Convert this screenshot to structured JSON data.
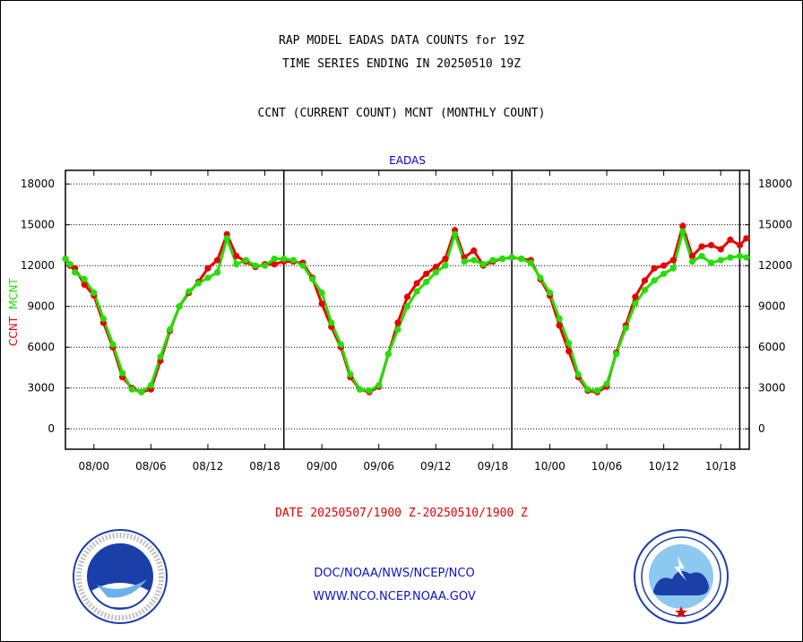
{
  "header": {
    "title_line1": "RAP MODEL EADAS DATA COUNTS for 19Z",
    "title_line2": "TIME SERIES ENDING IN 20250510 19Z",
    "title_line3": "CCNT (CURRENT COUNT) MCNT (MONTHLY COUNT)"
  },
  "footer": {
    "date_range": "DATE 20250507/1900 Z-20250510/1900 Z",
    "link1": "DOC/NOAA/NWS/NCEP/NCO",
    "link2": "WWW.NCO.NCEP.NOAA.GOV"
  },
  "colors": {
    "ccnt": "#e80000",
    "mcnt": "#22e000",
    "axis": "#000000",
    "title": "#0000c8"
  },
  "chart_data": {
    "type": "line",
    "title": "EADAS",
    "ylabel_parts": [
      "CCNT",
      "MCNT"
    ],
    "ylim": [
      -1500,
      19000
    ],
    "yticks": [
      0,
      3000,
      6000,
      9000,
      12000,
      15000,
      18000
    ],
    "xlim": [
      0,
      72
    ],
    "xticks": [
      {
        "x": 3,
        "label": "08/00"
      },
      {
        "x": 9,
        "label": "08/06"
      },
      {
        "x": 15,
        "label": "08/12"
      },
      {
        "x": 21,
        "label": "08/18"
      },
      {
        "x": 27,
        "label": "09/00"
      },
      {
        "x": 33,
        "label": "09/06"
      },
      {
        "x": 39,
        "label": "09/12"
      },
      {
        "x": 45,
        "label": "09/18"
      },
      {
        "x": 51,
        "label": "10/00"
      },
      {
        "x": 57,
        "label": "10/06"
      },
      {
        "x": 63,
        "label": "10/12"
      },
      {
        "x": 69,
        "label": "10/18"
      }
    ],
    "vlines": [
      23,
      47,
      71
    ],
    "grid": "horizontal dotted",
    "series": [
      {
        "name": "CCNT",
        "x": [
          0,
          0.5,
          1,
          2,
          3,
          4,
          5,
          6,
          7,
          8,
          9,
          10,
          11,
          12,
          13,
          14,
          15,
          16,
          17,
          18,
          19,
          20,
          21,
          22,
          23,
          24,
          25,
          26,
          27,
          28,
          29,
          30,
          31,
          32,
          33,
          34,
          35,
          36,
          37,
          38,
          39,
          40,
          41,
          42,
          43,
          44,
          45,
          46,
          47,
          48,
          49,
          50,
          51,
          52,
          53,
          54,
          55,
          56,
          57,
          58,
          59,
          60,
          61,
          62,
          63,
          64,
          65,
          66,
          67,
          68,
          69,
          70,
          71,
          71.7
        ],
        "values": [
          12500,
          12000,
          11800,
          10600,
          9800,
          7800,
          6000,
          3800,
          3000,
          2700,
          2900,
          5000,
          7200,
          9000,
          10000,
          10800,
          11800,
          12400,
          14300,
          12700,
          12300,
          11900,
          12100,
          12100,
          12300,
          12300,
          12200,
          11100,
          9200,
          7500,
          6000,
          3800,
          2900,
          2700,
          3100,
          5500,
          7800,
          9700,
          10700,
          11400,
          11900,
          12500,
          14600,
          12600,
          13100,
          12000,
          12300,
          12500,
          12600,
          12500,
          12400,
          11000,
          9800,
          7600,
          5700,
          3800,
          2800,
          2700,
          3100,
          5600,
          7600,
          9700,
          10900,
          11800,
          12000,
          12400,
          14900,
          12700,
          13400,
          13500,
          13200,
          13900,
          13500,
          14000
        ]
      },
      {
        "name": "MCNT",
        "x": [
          0,
          0.5,
          1,
          2,
          3,
          4,
          5,
          6,
          7,
          8,
          9,
          10,
          11,
          12,
          13,
          14,
          15,
          16,
          17,
          18,
          19,
          20,
          21,
          22,
          23,
          24,
          25,
          26,
          27,
          28,
          29,
          30,
          31,
          32,
          33,
          34,
          35,
          36,
          37,
          38,
          39,
          40,
          41,
          42,
          43,
          44,
          45,
          46,
          47,
          48,
          49,
          50,
          51,
          52,
          53,
          54,
          55,
          56,
          57,
          58,
          59,
          60,
          61,
          62,
          63,
          64,
          65,
          66,
          67,
          68,
          69,
          70,
          71,
          71.7
        ],
        "values": [
          12500,
          12100,
          11500,
          11000,
          10000,
          8100,
          6200,
          4100,
          2900,
          2700,
          3200,
          5300,
          7300,
          9000,
          10100,
          10700,
          11100,
          11500,
          14000,
          12100,
          12400,
          12000,
          12000,
          12500,
          12500,
          12400,
          12000,
          11000,
          10000,
          7800,
          6200,
          4000,
          2900,
          2800,
          3200,
          5500,
          7300,
          9000,
          10100,
          10800,
          11500,
          12000,
          14300,
          12300,
          12400,
          12100,
          12400,
          12500,
          12600,
          12500,
          12200,
          11100,
          10000,
          8100,
          6300,
          4000,
          2900,
          2800,
          3300,
          5500,
          7400,
          9200,
          10200,
          10900,
          11400,
          11800,
          14500,
          12300,
          12700,
          12200,
          12400,
          12600,
          12700,
          12600
        ]
      }
    ]
  }
}
